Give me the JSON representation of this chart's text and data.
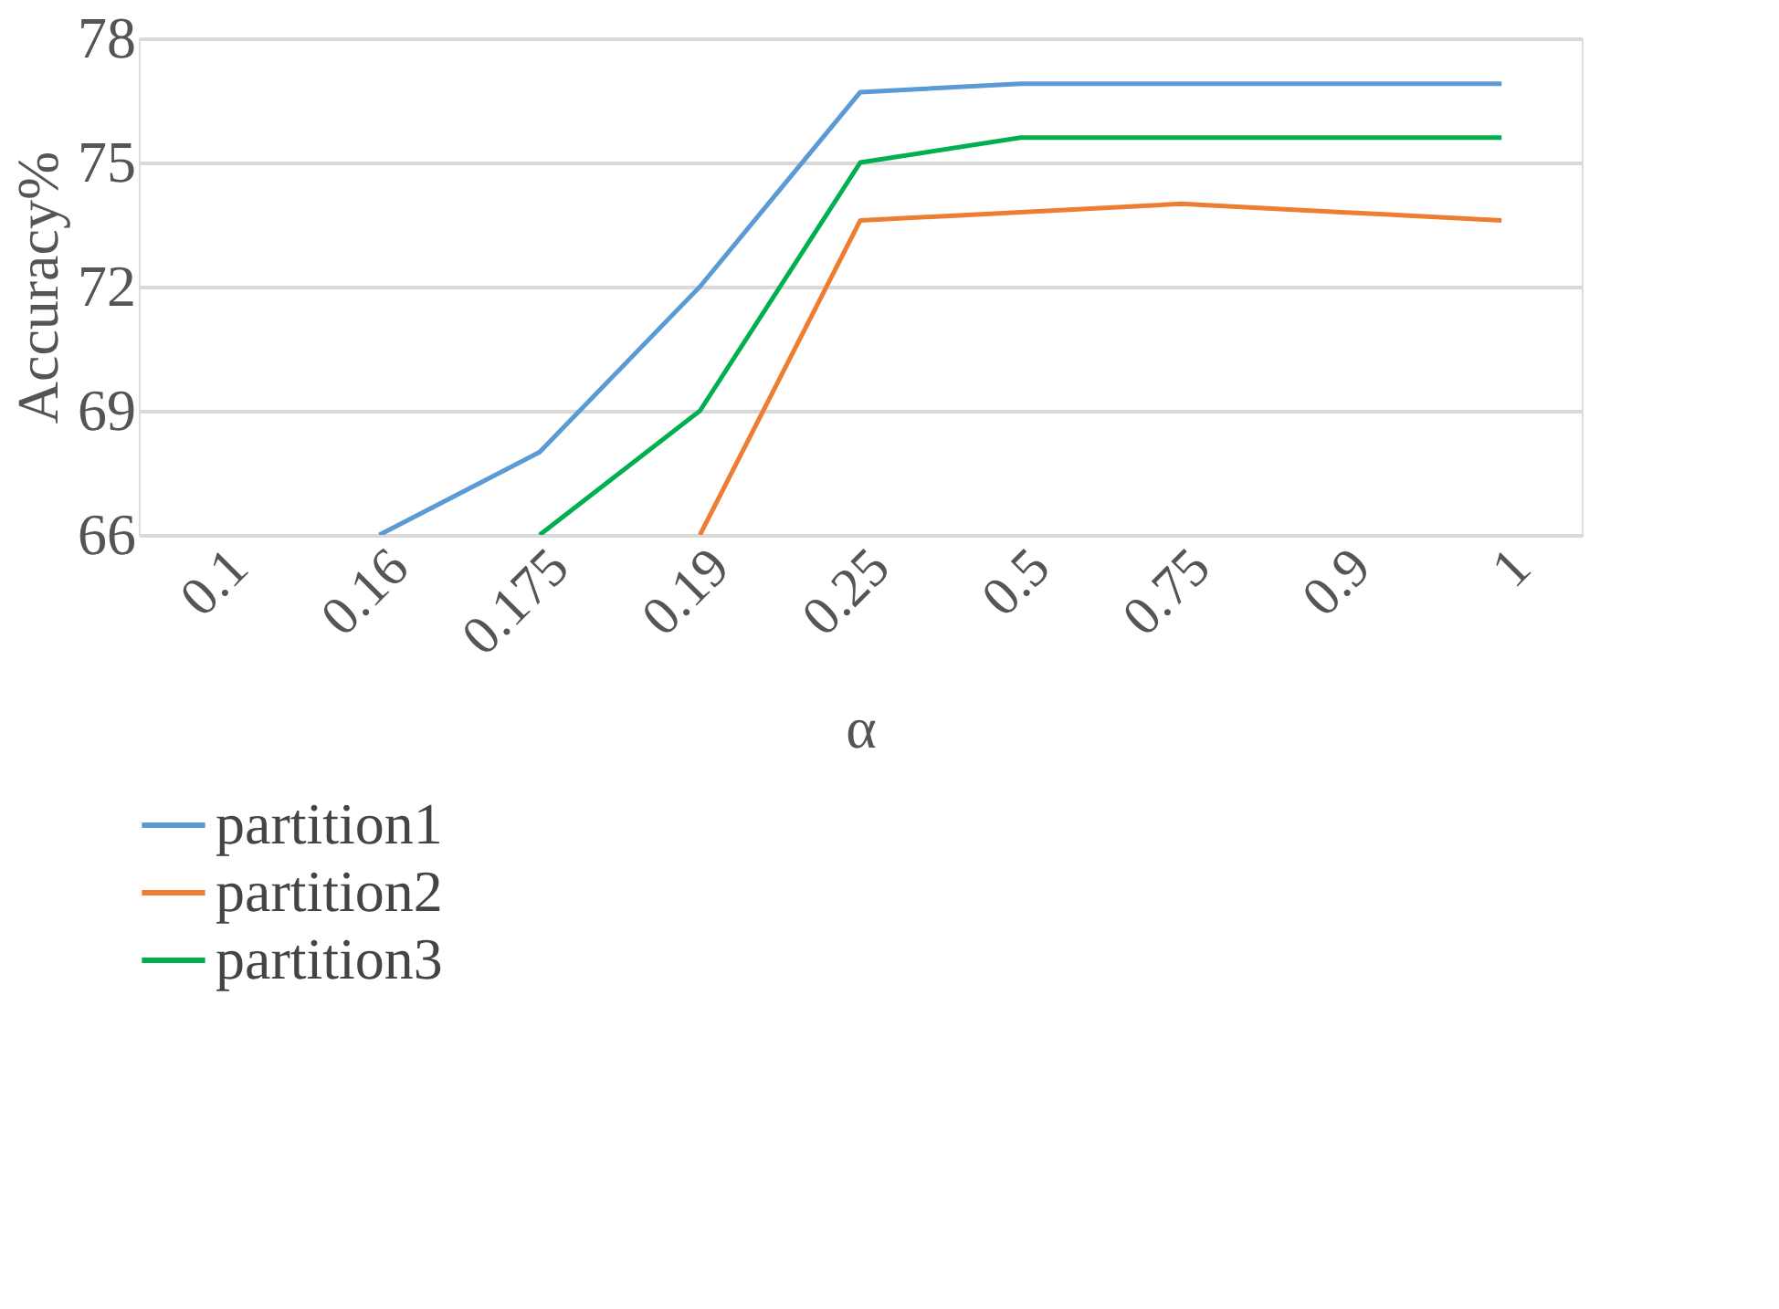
{
  "chart_data": {
    "type": "line",
    "xlabel": "α",
    "ylabel": "Accuracy%",
    "categories": [
      "0.1",
      "0.16",
      "0.175",
      "0.19",
      "0.25",
      "0.5",
      "0.75",
      "0.9",
      "1"
    ],
    "series": [
      {
        "name": "partition1",
        "color": "#5b9bd5",
        "values": [
          null,
          66,
          68,
          72,
          76.7,
          76.9,
          76.9,
          76.9,
          76.9
        ]
      },
      {
        "name": "partition2",
        "color": "#ed7d31",
        "values": [
          null,
          null,
          null,
          66,
          73.6,
          73.8,
          74.0,
          73.8,
          73.6
        ]
      },
      {
        "name": "partition3",
        "color": "#00b050",
        "values": [
          null,
          null,
          66,
          69,
          75,
          75.6,
          75.6,
          75.6,
          75.6
        ]
      }
    ],
    "ylim": [
      66,
      78
    ],
    "yticks": [
      66,
      69,
      72,
      75,
      78
    ],
    "grid": "y",
    "legend": "bottom",
    "marker": "none",
    "line_style": "solid"
  }
}
